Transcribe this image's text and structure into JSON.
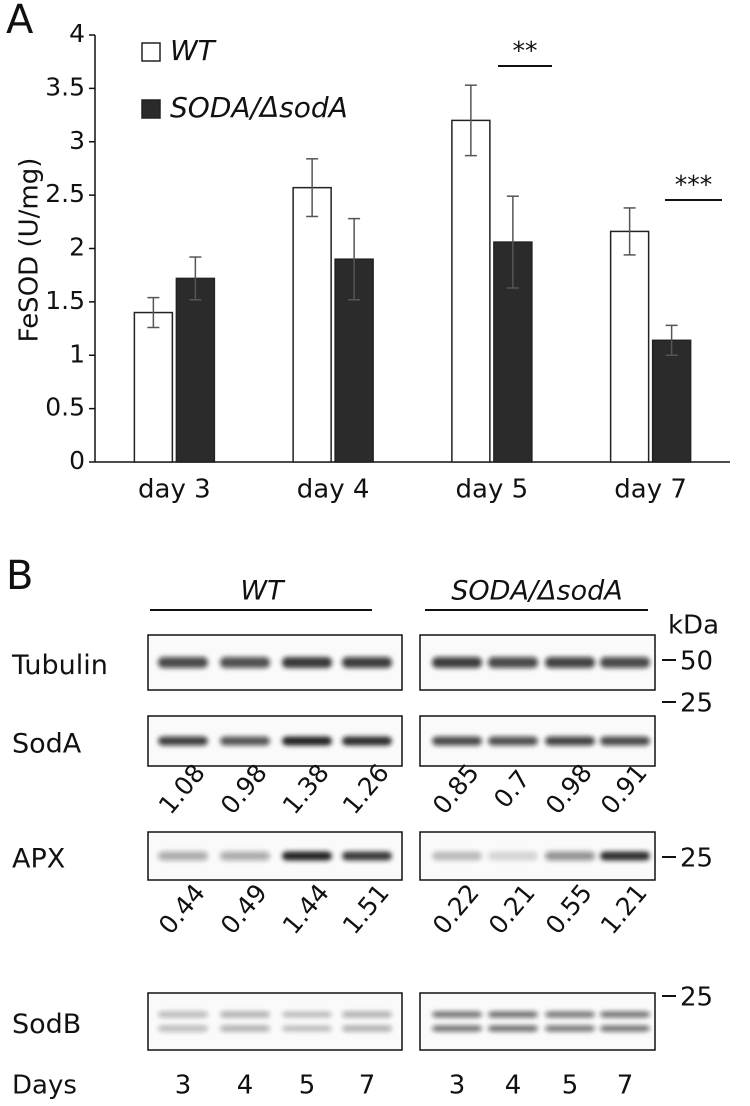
{
  "chart_data": {
    "type": "bar",
    "panel_label": "A",
    "y_label": "FeSOD (U/mg)",
    "categories": [
      "day 3",
      "day 4",
      "day 5",
      "day 7"
    ],
    "series": [
      {
        "name": "WT",
        "color": "#ffffff",
        "values": [
          1.4,
          2.57,
          3.2,
          2.16
        ],
        "errors": [
          0.14,
          0.27,
          0.33,
          0.22
        ]
      },
      {
        "name": "SODA/ΔsodA",
        "color": "#2b2b2b",
        "values": [
          1.72,
          1.9,
          2.06,
          1.14
        ],
        "errors": [
          0.2,
          0.38,
          0.43,
          0.14
        ]
      }
    ],
    "annotations": [
      "**",
      "***"
    ],
    "ylim": [
      0,
      4
    ],
    "yticks": [
      0,
      0.5,
      1,
      1.5,
      2,
      2.5,
      3,
      3.5,
      4
    ],
    "grid": false,
    "legend": "top-left"
  },
  "blot": {
    "panel_label": "B",
    "groups": [
      "WT",
      "SODA/ΔsodA"
    ],
    "kda_label": "kDa",
    "rows": [
      {
        "label": "Tubulin",
        "marker": "50"
      },
      {
        "label": "SodA",
        "marker": "25",
        "quantification": [
          [
            "1.08",
            "0.98",
            "1.38",
            "1.26"
          ],
          [
            "0.85",
            "0.7",
            "0.98",
            "0.91"
          ]
        ]
      },
      {
        "label": "APX",
        "marker": "25",
        "quantification": [
          [
            "0.44",
            "0.49",
            "1.44",
            "1.51"
          ],
          [
            "0.22",
            "0.21",
            "0.55",
            "1.21"
          ]
        ]
      },
      {
        "label": "SodB",
        "marker": "25"
      }
    ],
    "days_label": "Days",
    "days": [
      [
        "3",
        "4",
        "5",
        "7"
      ],
      [
        "3",
        "4",
        "5",
        "7"
      ]
    ]
  }
}
